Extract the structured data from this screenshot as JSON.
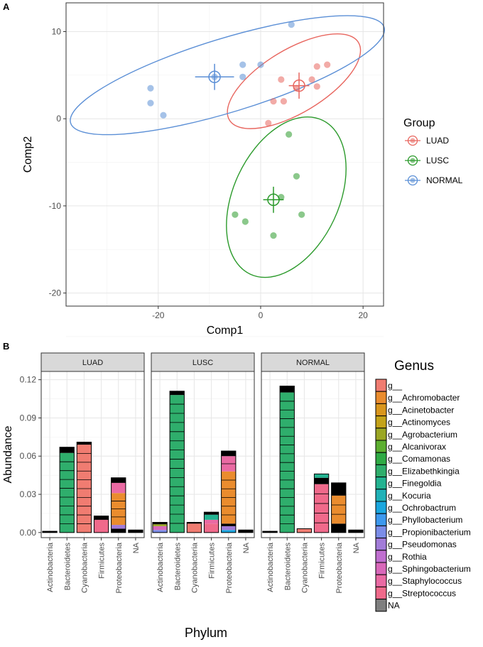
{
  "panel_a": {
    "label": "A",
    "chart_data": {
      "type": "scatter",
      "xlabel": "Comp1",
      "ylabel": "Comp2",
      "xlim": [
        -38,
        24
      ],
      "ylim": [
        -21.5,
        13.3
      ],
      "xticks": [
        -20,
        0,
        20
      ],
      "xtick_labels": [
        "-20",
        "0",
        "20"
      ],
      "yticks": [
        -20,
        -10,
        0,
        10
      ],
      "ytick_labels": [
        "-20",
        "-10",
        "0",
        "10"
      ],
      "legend_title": "Group",
      "legend_position": "right",
      "series": [
        {
          "name": "LUAD",
          "color": "#e8665f",
          "points": [
            [
              4,
              4.5
            ],
            [
              10,
              4.5
            ],
            [
              11,
              6
            ],
            [
              13,
              6.2
            ],
            [
              7,
              3.5
            ],
            [
              11,
              3.7
            ],
            [
              2.5,
              2
            ],
            [
              4.5,
              2
            ],
            [
              1.5,
              -0.5
            ]
          ],
          "centroid": [
            7.5,
            3.8
          ],
          "centroid_err": [
            2,
            1.5
          ],
          "ellipse": {
            "cx": 6.5,
            "cy": 4.3,
            "rx": 14.7,
            "ry": 6.2,
            "angle_deg": 31
          }
        },
        {
          "name": "LUSC",
          "color": "#2b9a2b",
          "points": [
            [
              5.5,
              -1.8
            ],
            [
              7,
              -6.6
            ],
            [
              4,
              -9
            ],
            [
              -5,
              -11
            ],
            [
              -3,
              -11.8
            ],
            [
              8,
              -11
            ],
            [
              2.5,
              -13.4
            ]
          ],
          "centroid": [
            2.5,
            -9.3
          ],
          "centroid_err": [
            2,
            1.5
          ],
          "ellipse": {
            "cx": 5,
            "cy": -9,
            "rx": 16.6,
            "ry": 10.3,
            "angle_deg": 65
          }
        },
        {
          "name": "NORMAL",
          "color": "#5b8fd6",
          "points": [
            [
              -21.5,
              3.5
            ],
            [
              -21.5,
              1.8
            ],
            [
              -19,
              0.4
            ],
            [
              -3.5,
              6.2
            ],
            [
              -3.5,
              4.8
            ],
            [
              0,
              6.2
            ],
            [
              6,
              10.8
            ],
            [
              -9,
              4.8
            ]
          ],
          "centroid": [
            -9,
            4.8
          ],
          "centroid_err": [
            3.8,
            1.5
          ],
          "ellipse": {
            "cx": -6.5,
            "cy": 5,
            "rx": 32,
            "ry": 7.2,
            "angle_deg": 17
          }
        }
      ]
    }
  },
  "panel_b": {
    "label": "B",
    "chart_data": {
      "type": "bar",
      "stacked": true,
      "xlabel": "Phylum",
      "ylabel": "Abundance",
      "ylim": [
        -0.004,
        0.1265
      ],
      "yticks": [
        0,
        0.03,
        0.06,
        0.09,
        0.12
      ],
      "ytick_labels": [
        "0.00",
        "0.03",
        "0.06",
        "0.09",
        "0.12"
      ],
      "categories": [
        "Actinobacteria",
        "Bacteroidetes",
        "Cyanobacteria",
        "Firmicutes",
        "Proteobacteria",
        "NA"
      ],
      "facets": [
        "LUAD",
        "LUSC",
        "NORMAL"
      ],
      "legend_title": "Genus",
      "genera": [
        {
          "name": "g__",
          "color": "#f07c71"
        },
        {
          "name": "g__Achromobacter",
          "color": "#ea8c2e"
        },
        {
          "name": "g__Acinetobacter",
          "color": "#d9961c"
        },
        {
          "name": "g__Actinomyces",
          "color": "#c4a319"
        },
        {
          "name": "g__Agrobacterium",
          "color": "#9ba724"
        },
        {
          "name": "g__Alcanivorax",
          "color": "#5daf30"
        },
        {
          "name": "g__Comamonas",
          "color": "#2fab45"
        },
        {
          "name": "g__Elizabethkingia",
          "color": "#2fae6c"
        },
        {
          "name": "g__Finegoldia",
          "color": "#23b391"
        },
        {
          "name": "g__Kocuria",
          "color": "#20b2b8"
        },
        {
          "name": "g__Ochrobactrum",
          "color": "#1aa7df"
        },
        {
          "name": "g__Phyllobacterium",
          "color": "#3d99ee"
        },
        {
          "name": "g__Propionibacterium",
          "color": "#7b8de8"
        },
        {
          "name": "g__Pseudomonas",
          "color": "#a27cd9"
        },
        {
          "name": "g__Rothia",
          "color": "#c06fd0"
        },
        {
          "name": "g__Sphingobacterium",
          "color": "#d968ba"
        },
        {
          "name": "g__Staphylococcus",
          "color": "#ea6aa3"
        },
        {
          "name": "g__Streptococcus",
          "color": "#f06a8b"
        },
        {
          "name": "NA",
          "color": "#7f7f7f"
        }
      ],
      "values": [
        {
          "facet": "LUAD",
          "bars": [
            {
              "category": "Actinobacteria",
              "total": 0.001,
              "segments": [
                {
                  "genus": "NA",
                  "value": 0.001
                }
              ]
            },
            {
              "category": "Bacteroidetes",
              "total": 0.067,
              "segments": [
                {
                  "genus": "g__Elizabethkingia",
                  "value": 0.0625
                },
                {
                  "genus": "NA",
                  "value": 0.0045
                }
              ]
            },
            {
              "category": "Cyanobacteria",
              "total": 0.071,
              "segments": [
                {
                  "genus": "g__",
                  "value": 0.069
                },
                {
                  "genus": "NA",
                  "value": 0.002
                }
              ]
            },
            {
              "category": "Firmicutes",
              "total": 0.013,
              "segments": [
                {
                  "genus": "g__Streptococcus",
                  "value": 0.01
                },
                {
                  "genus": "NA",
                  "value": 0.003
                }
              ]
            },
            {
              "category": "Proteobacteria",
              "total": 0.043,
              "segments": [
                {
                  "genus": "NA",
                  "value": 0.003
                },
                {
                  "genus": "g__Pseudomonas",
                  "value": 0.003
                },
                {
                  "genus": "g__Achromobacter",
                  "value": 0.025
                },
                {
                  "genus": "g__Staphylococcus",
                  "value": 0.008
                },
                {
                  "genus": "NA",
                  "value": 0.004
                }
              ]
            },
            {
              "category": "NA",
              "total": 0.002,
              "segments": [
                {
                  "genus": "NA",
                  "value": 0.002
                }
              ]
            }
          ]
        },
        {
          "facet": "LUSC",
          "bars": [
            {
              "category": "Actinobacteria",
              "total": 0.008,
              "segments": [
                {
                  "genus": "g__Propionibacterium",
                  "value": 0.002
                },
                {
                  "genus": "g__Sphingobacterium",
                  "value": 0.003
                },
                {
                  "genus": "g__Agrobacterium",
                  "value": 0.0015
                },
                {
                  "genus": "NA",
                  "value": 0.0015
                }
              ]
            },
            {
              "category": "Bacteroidetes",
              "total": 0.111,
              "segments": [
                {
                  "genus": "g__Elizabethkingia",
                  "value": 0.108
                },
                {
                  "genus": "NA",
                  "value": 0.003
                }
              ]
            },
            {
              "category": "Cyanobacteria",
              "total": 0.008,
              "segments": [
                {
                  "genus": "g__",
                  "value": 0.007
                },
                {
                  "genus": "NA",
                  "value": 0.001
                }
              ]
            },
            {
              "category": "Firmicutes",
              "total": 0.016,
              "segments": [
                {
                  "genus": "g__Streptococcus",
                  "value": 0.007
                },
                {
                  "genus": "g__Staphylococcus",
                  "value": 0.003
                },
                {
                  "genus": "g__Finegoldia",
                  "value": 0.004
                },
                {
                  "genus": "NA",
                  "value": 0.002
                }
              ]
            },
            {
              "category": "Proteobacteria",
              "total": 0.064,
              "segments": [
                {
                  "genus": "g__Ochrobactrum",
                  "value": 0.002
                },
                {
                  "genus": "g__Pseudomonas",
                  "value": 0.003
                },
                {
                  "genus": "NA",
                  "value": 0.002
                },
                {
                  "genus": "g__Achromobacter",
                  "value": 0.041
                },
                {
                  "genus": "g__Staphylococcus",
                  "value": 0.012
                },
                {
                  "genus": "NA",
                  "value": 0.004
                }
              ]
            },
            {
              "category": "NA",
              "total": 0.002,
              "segments": [
                {
                  "genus": "NA",
                  "value": 0.002
                }
              ]
            }
          ]
        },
        {
          "facet": "NORMAL",
          "bars": [
            {
              "category": "Actinobacteria",
              "total": 0.001,
              "segments": [
                {
                  "genus": "NA",
                  "value": 0.001
                }
              ]
            },
            {
              "category": "Bacteroidetes",
              "total": 0.115,
              "segments": [
                {
                  "genus": "g__Elizabethkingia",
                  "value": 0.11
                },
                {
                  "genus": "NA",
                  "value": 0.005
                }
              ]
            },
            {
              "category": "Cyanobacteria",
              "total": 0.003,
              "segments": [
                {
                  "genus": "g__",
                  "value": 0.003
                }
              ]
            },
            {
              "category": "Firmicutes",
              "total": 0.046,
              "segments": [
                {
                  "genus": "g__Streptococcus",
                  "value": 0.038
                },
                {
                  "genus": "NA",
                  "value": 0.005
                },
                {
                  "genus": "g__Finegoldia",
                  "value": 0.003
                }
              ]
            },
            {
              "category": "Proteobacteria",
              "total": 0.039,
              "segments": [
                {
                  "genus": "NA",
                  "value": 0.007
                },
                {
                  "genus": "g__Achromobacter",
                  "value": 0.022
                },
                {
                  "genus": "NA",
                  "value": 0.01
                }
              ]
            },
            {
              "category": "NA",
              "total": 0.002,
              "segments": [
                {
                  "genus": "NA",
                  "value": 0.002
                }
              ]
            }
          ]
        }
      ]
    }
  }
}
